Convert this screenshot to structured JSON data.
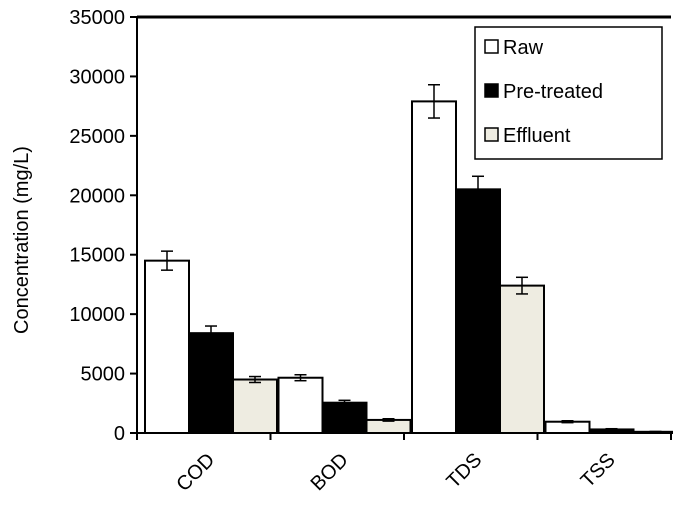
{
  "chart_data": {
    "type": "bar",
    "title": "",
    "xlabel": "",
    "ylabel": "Concentration (mg/L)",
    "ylim": [
      0,
      35000
    ],
    "yticks": [
      "0",
      "5000",
      "10000",
      "15000",
      "20000",
      "25000",
      "30000",
      "35000"
    ],
    "categories": [
      "COD",
      "BOD",
      "TDS",
      "TSS"
    ],
    "series": [
      {
        "name": "Raw",
        "color": "#ffffff",
        "values": [
          14500,
          4650,
          27900,
          950
        ],
        "errors": [
          800,
          250,
          1400,
          80
        ]
      },
      {
        "name": "Pre-treated",
        "color": "#000000",
        "values": [
          8400,
          2550,
          20500,
          300
        ],
        "errors": [
          600,
          200,
          1100,
          60
        ]
      },
      {
        "name": "Effluent",
        "color": "#eeece1",
        "values": [
          4500,
          1100,
          12400,
          100
        ],
        "errors": [
          250,
          100,
          700,
          30
        ]
      }
    ],
    "grid": false,
    "legend": "top-right"
  }
}
